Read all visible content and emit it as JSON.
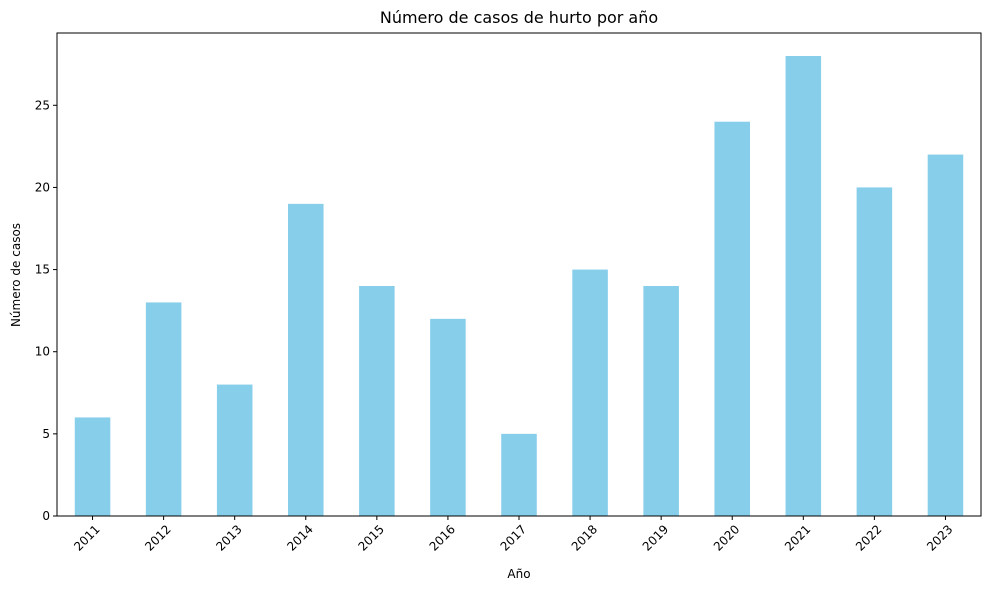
{
  "chart_data": {
    "type": "bar",
    "title": "Número de casos de hurto por año",
    "xlabel": "Año",
    "ylabel": "Número de casos",
    "categories": [
      "2011",
      "2012",
      "2013",
      "2014",
      "2015",
      "2016",
      "2017",
      "2018",
      "2019",
      "2020",
      "2021",
      "2022",
      "2023"
    ],
    "values": [
      6,
      13,
      8,
      19,
      14,
      12,
      5,
      15,
      14,
      24,
      28,
      20,
      22
    ],
    "ylim": [
      0,
      29.4
    ],
    "yticks": [
      0,
      5,
      10,
      15,
      20,
      25
    ],
    "ytick_labels": [
      "0",
      "5",
      "10",
      "15",
      "20",
      "25"
    ],
    "bar_color": "#87ceeb",
    "grid": false,
    "legend": false
  }
}
